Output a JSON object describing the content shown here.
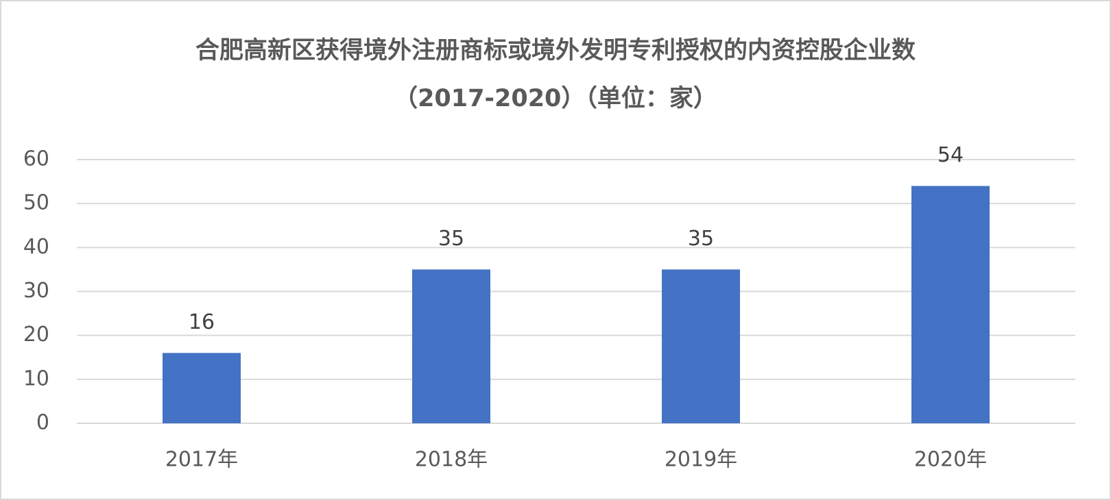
{
  "chart_data": {
    "type": "bar",
    "title": "合肥高新区获得境外注册商标或境外发明专利授权的内资控股企业数",
    "subtitle": "（2017-2020）（单位：家）",
    "categories": [
      "2017年",
      "2018年",
      "2019年",
      "2020年"
    ],
    "values": [
      16,
      35,
      35,
      54
    ],
    "color": "#4472c4",
    "ylim": [
      0,
      60
    ],
    "yticks": [
      0,
      10,
      20,
      30,
      40,
      50,
      60
    ],
    "grid": true
  }
}
